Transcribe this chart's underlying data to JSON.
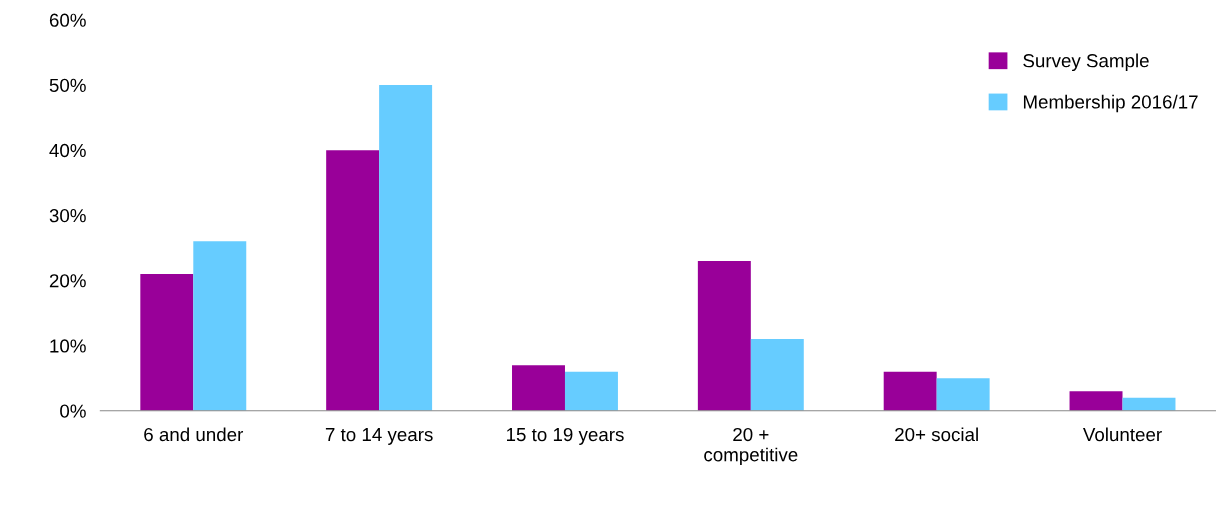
{
  "chart_data": {
    "type": "bar",
    "categories": [
      "6 and under",
      "7 to 14 years",
      "15 to 19 years",
      "20 +\ncompetitive",
      "20+ social",
      "Volunteer"
    ],
    "series": [
      {
        "name": "Survey Sample",
        "color": "#990099",
        "values": [
          21,
          40,
          7,
          23,
          6,
          3
        ]
      },
      {
        "name": "Membership 2016/17",
        "color": "#66ccff",
        "values": [
          26,
          50,
          6,
          11,
          5,
          2
        ]
      }
    ],
    "ylim": [
      0,
      60
    ],
    "yticks": [
      {
        "value": 0,
        "label": "0%"
      },
      {
        "value": 10,
        "label": "10%"
      },
      {
        "value": 20,
        "label": "20%"
      },
      {
        "value": 30,
        "label": "30%"
      },
      {
        "value": 40,
        "label": "40%"
      },
      {
        "value": 50,
        "label": "50%"
      },
      {
        "value": 60,
        "label": "60%"
      }
    ],
    "grid": false,
    "legend": "top right"
  }
}
